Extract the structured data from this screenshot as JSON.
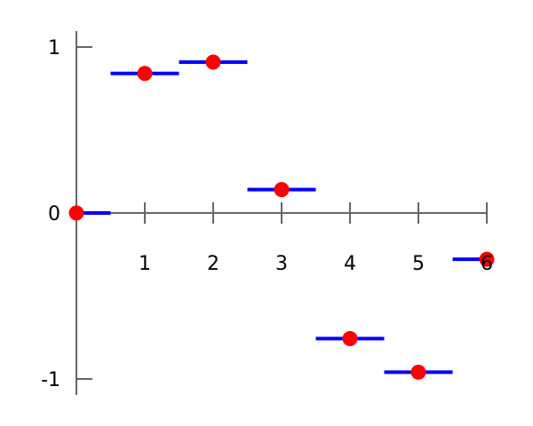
{
  "chart_data": {
    "type": "scatter",
    "title": "",
    "xlabel": "",
    "ylabel": "",
    "xlim": [
      0,
      6
    ],
    "ylim": [
      -1.1,
      1.1
    ],
    "x_ticks": [
      "1",
      "2",
      "3",
      "4",
      "5",
      "6"
    ],
    "y_ticks": [
      "1",
      "0",
      "-1"
    ],
    "grid": false,
    "x": [
      0,
      1,
      2,
      3,
      4,
      5,
      6
    ],
    "series": [
      {
        "values": [
          0,
          0.841,
          0.909,
          0.141,
          -0.757,
          -0.959,
          -0.279
        ],
        "color": "#ff0000",
        "marker": "circle",
        "hold_step_color": "#0000ff",
        "hold_half_width": 0.5
      }
    ],
    "colors": {
      "axis": "#666666",
      "points": "#ff0000",
      "steps": "#0000ff"
    }
  }
}
